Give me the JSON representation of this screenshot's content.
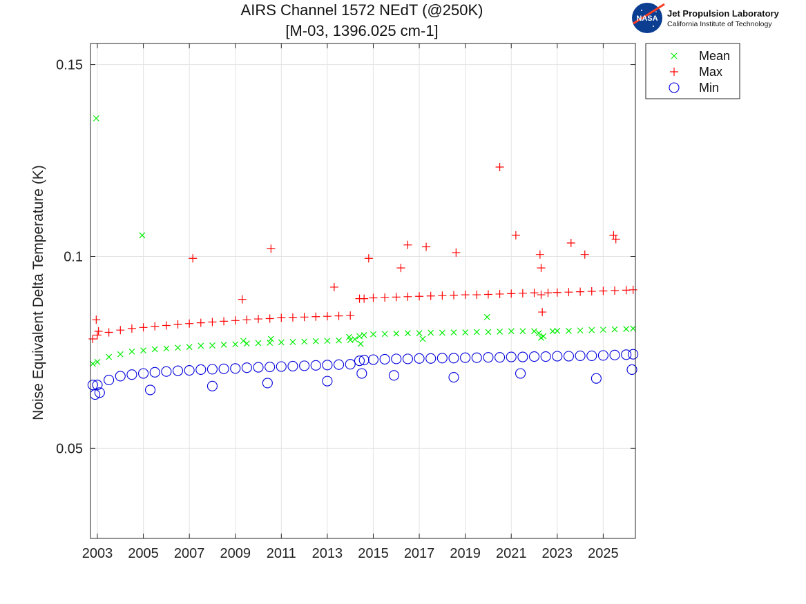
{
  "logo": {
    "org_name": "Jet Propulsion Laboratory",
    "org_subtitle": "California Institute of Technology",
    "emblem_text": "NASA"
  },
  "chart_data": {
    "type": "scatter",
    "title": "AIRS Channel 1572 NEdT (@250K)",
    "subtitle": "[M-03, 1396.025 cm-1]",
    "xlabel": "",
    "ylabel": "Noise Equivalent Delta Temperature (K)",
    "xlim": [
      2002.7,
      2026.4
    ],
    "ylim": [
      0.0265,
      0.1555
    ],
    "x_ticks": [
      2003,
      2005,
      2007,
      2009,
      2011,
      2013,
      2015,
      2017,
      2019,
      2021,
      2023,
      2025
    ],
    "x_tick_labels": [
      "2003",
      "2005",
      "2007",
      "2009",
      "2011",
      "2013",
      "2015",
      "2017",
      "2019",
      "2021",
      "2023",
      "2025"
    ],
    "y_ticks": [
      0.05,
      0.1,
      0.15
    ],
    "y_tick_labels": [
      "0.05",
      "0.1",
      "0.15"
    ],
    "grid": true,
    "legend_position": "top-right outside",
    "series": [
      {
        "name": "Mean",
        "marker": "x",
        "color": "#00ee00",
        "x": [
          2002.8,
          2003.0,
          2003.5,
          2004.0,
          2004.5,
          2005.0,
          2005.5,
          2006.0,
          2006.5,
          2007.0,
          2007.5,
          2008.0,
          2008.5,
          2009.0,
          2009.5,
          2010.0,
          2010.5,
          2011.0,
          2011.5,
          2012.0,
          2012.5,
          2013.0,
          2013.5,
          2014.0,
          2014.2,
          2014.4,
          2014.6,
          2015.0,
          2015.5,
          2016.0,
          2016.5,
          2017.0,
          2017.5,
          2018.0,
          2018.5,
          2019.0,
          2019.5,
          2020.0,
          2020.5,
          2021.0,
          2021.5,
          2022.0,
          2022.2,
          2022.4,
          2022.8,
          2023.0,
          2023.5,
          2024.0,
          2024.5,
          2025.0,
          2025.5,
          2026.0,
          2026.3,
          2002.95,
          2004.95,
          2009.35,
          2010.55,
          2013.95,
          2014.45,
          2017.15,
          2019.95,
          2022.3
        ],
        "y": [
          0.072,
          0.0725,
          0.0738,
          0.0745,
          0.0752,
          0.0755,
          0.0758,
          0.076,
          0.0762,
          0.0764,
          0.0767,
          0.0768,
          0.077,
          0.0771,
          0.0773,
          0.0774,
          0.0775,
          0.0776,
          0.0777,
          0.0778,
          0.0779,
          0.078,
          0.0781,
          0.0782,
          0.0784,
          0.0792,
          0.0795,
          0.0797,
          0.0798,
          0.0799,
          0.08,
          0.08,
          0.0801,
          0.0801,
          0.0802,
          0.0802,
          0.0803,
          0.0803,
          0.0804,
          0.0805,
          0.0805,
          0.0805,
          0.08,
          0.0792,
          0.0805,
          0.0806,
          0.0806,
          0.0807,
          0.0808,
          0.0809,
          0.081,
          0.0811,
          0.0812,
          0.136,
          0.1055,
          0.078,
          0.0785,
          0.079,
          0.0772,
          0.0785,
          0.0842,
          0.0788
        ]
      },
      {
        "name": "Max",
        "marker": "+",
        "color": "#ff0000",
        "x": [
          2002.8,
          2003.0,
          2003.5,
          2004.0,
          2004.5,
          2005.0,
          2005.5,
          2006.0,
          2006.5,
          2007.0,
          2007.5,
          2008.0,
          2008.5,
          2009.0,
          2009.5,
          2010.0,
          2010.5,
          2011.0,
          2011.5,
          2012.0,
          2012.5,
          2013.0,
          2013.5,
          2014.0,
          2014.4,
          2014.6,
          2015.0,
          2015.5,
          2016.0,
          2016.5,
          2017.0,
          2017.5,
          2018.0,
          2018.5,
          2019.0,
          2019.5,
          2020.0,
          2020.5,
          2021.0,
          2021.5,
          2022.0,
          2022.3,
          2022.6,
          2023.0,
          2023.5,
          2024.0,
          2024.5,
          2025.0,
          2025.5,
          2026.0,
          2026.3,
          2002.95,
          2003.05,
          2007.15,
          2009.3,
          2010.55,
          2013.3,
          2014.8,
          2016.5,
          2017.3,
          2020.5,
          2021.2,
          2022.25,
          2022.35,
          2022.3,
          2023.6,
          2025.45,
          2025.55,
          2016.2,
          2018.6,
          2024.2
        ],
        "y": [
          0.0785,
          0.0795,
          0.0802,
          0.0808,
          0.0812,
          0.0815,
          0.0818,
          0.082,
          0.0823,
          0.0825,
          0.0827,
          0.0829,
          0.0831,
          0.0833,
          0.0835,
          0.0837,
          0.0838,
          0.084,
          0.0841,
          0.0842,
          0.0843,
          0.0844,
          0.0845,
          0.0846,
          0.089,
          0.089,
          0.0892,
          0.0893,
          0.0894,
          0.0895,
          0.0896,
          0.0897,
          0.0898,
          0.0899,
          0.09,
          0.09,
          0.0901,
          0.0902,
          0.0903,
          0.0904,
          0.0905,
          0.09,
          0.0905,
          0.0906,
          0.0907,
          0.0908,
          0.0909,
          0.091,
          0.0911,
          0.0912,
          0.0913,
          0.0835,
          0.0805,
          0.0995,
          0.0888,
          0.102,
          0.092,
          0.0995,
          0.103,
          0.1025,
          0.1233,
          0.1055,
          0.1005,
          0.0855,
          0.097,
          0.1035,
          0.1055,
          0.1045,
          0.097,
          0.101,
          0.1005
        ]
      },
      {
        "name": "Min",
        "marker": "o",
        "color": "#0000dd",
        "x": [
          2002.8,
          2003.0,
          2003.5,
          2004.0,
          2004.5,
          2005.0,
          2005.5,
          2006.0,
          2006.5,
          2007.0,
          2007.5,
          2008.0,
          2008.5,
          2009.0,
          2009.5,
          2010.0,
          2010.5,
          2011.0,
          2011.5,
          2012.0,
          2012.5,
          2013.0,
          2013.5,
          2014.0,
          2014.4,
          2014.6,
          2015.0,
          2015.5,
          2016.0,
          2016.5,
          2017.0,
          2017.5,
          2018.0,
          2018.5,
          2019.0,
          2019.5,
          2020.0,
          2020.5,
          2021.0,
          2021.5,
          2022.0,
          2022.5,
          2023.0,
          2023.5,
          2024.0,
          2024.5,
          2025.0,
          2025.5,
          2026.0,
          2026.3,
          2002.9,
          2003.1,
          2005.3,
          2008.0,
          2010.4,
          2013.0,
          2014.5,
          2015.9,
          2018.5,
          2021.4,
          2024.7,
          2026.25
        ],
        "y": [
          0.0665,
          0.0665,
          0.0678,
          0.0688,
          0.0692,
          0.0695,
          0.0698,
          0.07,
          0.0702,
          0.0703,
          0.0705,
          0.0706,
          0.0707,
          0.0708,
          0.071,
          0.0711,
          0.0712,
          0.0713,
          0.0714,
          0.0715,
          0.0716,
          0.0717,
          0.0718,
          0.0719,
          0.0728,
          0.073,
          0.0731,
          0.0732,
          0.0733,
          0.0733,
          0.0734,
          0.0734,
          0.0735,
          0.0735,
          0.0736,
          0.0736,
          0.0737,
          0.0737,
          0.0738,
          0.0738,
          0.0739,
          0.0739,
          0.074,
          0.074,
          0.0741,
          0.0741,
          0.0742,
          0.0743,
          0.0744,
          0.0745,
          0.064,
          0.0645,
          0.0652,
          0.0662,
          0.067,
          0.0675,
          0.0695,
          0.069,
          0.0685,
          0.0695,
          0.0682,
          0.0705
        ]
      }
    ]
  }
}
